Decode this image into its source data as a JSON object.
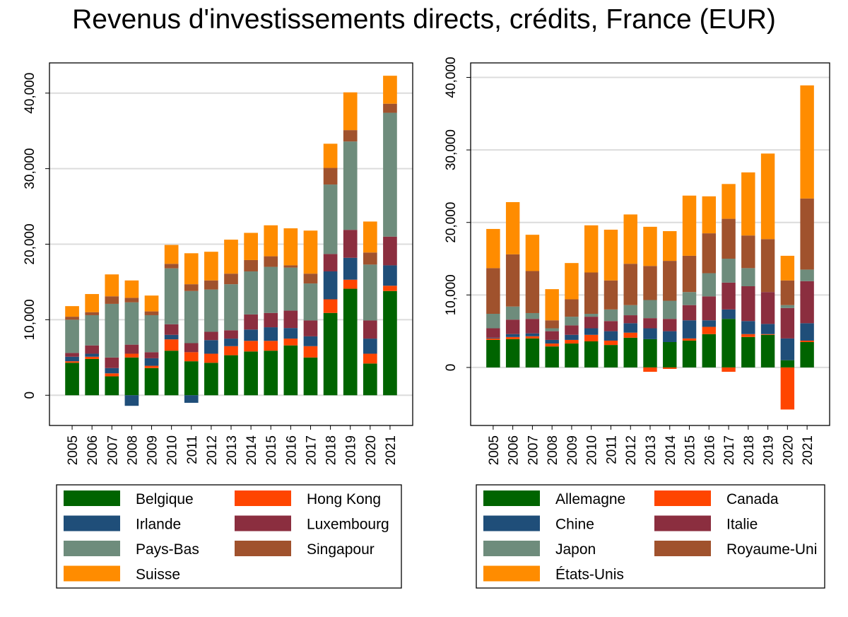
{
  "title": "Revenus d'investissements directs, crédits, France (EUR)",
  "chart_data": [
    {
      "type": "bar",
      "stacked": true,
      "categories": [
        "2005",
        "2006",
        "2007",
        "2008",
        "2009",
        "2010",
        "2011",
        "2012",
        "2013",
        "2014",
        "2015",
        "2016",
        "2017",
        "2018",
        "2019",
        "2020",
        "2021"
      ],
      "ylim": [
        -4000,
        44000
      ],
      "yticks": [
        0,
        10000,
        20000,
        30000,
        40000
      ],
      "ytick_labels": [
        "0",
        "10,000",
        "20,000",
        "30,000",
        "40,000"
      ],
      "grid": true,
      "legend_position": "bottom",
      "series": [
        {
          "name": "Belgique",
          "color": "#006400",
          "values": [
            4300,
            4800,
            2500,
            5000,
            3600,
            5900,
            4500,
            4300,
            5300,
            5800,
            5900,
            6600,
            5000,
            10900,
            14100,
            4200,
            13800
          ]
        },
        {
          "name": "Hong Kong",
          "color": "#ff4500",
          "values": [
            200,
            300,
            400,
            500,
            300,
            1500,
            1200,
            1200,
            1200,
            1400,
            1300,
            900,
            1500,
            1800,
            1200,
            1300,
            700
          ]
        },
        {
          "name": "Irlande",
          "color": "#1f4e79",
          "values": [
            600,
            400,
            700,
            -1400,
            1000,
            600,
            -1000,
            1800,
            1000,
            1500,
            1800,
            1400,
            1300,
            3700,
            2900,
            2000,
            2700
          ]
        },
        {
          "name": "Luxembourg",
          "color": "#8b2e3f",
          "values": [
            500,
            1100,
            1400,
            1200,
            800,
            1400,
            1200,
            1100,
            1100,
            2000,
            1900,
            2300,
            2100,
            2300,
            3700,
            2400,
            3800
          ]
        },
        {
          "name": "Pays-Bas",
          "color": "#6e8c7c",
          "values": [
            4400,
            4000,
            7100,
            5600,
            4900,
            7400,
            6900,
            5600,
            6100,
            5700,
            6100,
            5700,
            4900,
            9200,
            11700,
            7400,
            16400
          ]
        },
        {
          "name": "Singapour",
          "color": "#a0522d",
          "values": [
            400,
            400,
            1000,
            600,
            500,
            600,
            900,
            1200,
            1400,
            1500,
            1400,
            300,
            1300,
            2200,
            1500,
            1600,
            1200
          ]
        },
        {
          "name": "Suisse",
          "color": "#ff8c00",
          "values": [
            1400,
            2400,
            2900,
            2300,
            2100,
            2500,
            4100,
            3800,
            4500,
            3600,
            4100,
            4900,
            5700,
            3200,
            5000,
            4100,
            3700
          ]
        }
      ]
    },
    {
      "type": "bar",
      "stacked": true,
      "categories": [
        "2005",
        "2006",
        "2007",
        "2008",
        "2009",
        "2010",
        "2011",
        "2012",
        "2013",
        "2014",
        "2015",
        "2016",
        "2017",
        "2018",
        "2019",
        "2020",
        "2021"
      ],
      "ylim": [
        -8000,
        42000
      ],
      "yticks": [
        0,
        10000,
        20000,
        30000,
        40000
      ],
      "ytick_labels": [
        "0",
        "10,000",
        "20,000",
        "30,000",
        "40,000"
      ],
      "grid": true,
      "legend_position": "bottom",
      "series": [
        {
          "name": "Allemagne",
          "color": "#006400",
          "values": [
            3800,
            3900,
            4000,
            2900,
            3300,
            3600,
            3100,
            4100,
            3900,
            3500,
            3700,
            4600,
            6700,
            4200,
            4500,
            1000,
            3500
          ]
        },
        {
          "name": "Canada",
          "color": "#ff4500",
          "values": [
            200,
            300,
            300,
            400,
            500,
            900,
            600,
            700,
            -600,
            -200,
            300,
            1000,
            -600,
            400,
            100,
            -5800,
            200
          ]
        },
        {
          "name": "Chine",
          "color": "#1f4e79",
          "values": [
            100,
            400,
            400,
            500,
            700,
            900,
            1300,
            1300,
            1500,
            1500,
            2500,
            900,
            1300,
            1800,
            1400,
            3000,
            2400
          ]
        },
        {
          "name": "Italie",
          "color": "#8b2e3f",
          "values": [
            1300,
            2000,
            2000,
            1200,
            1300,
            1600,
            1400,
            1100,
            1400,
            1700,
            2100,
            3300,
            3700,
            4800,
            4400,
            4200,
            5800
          ]
        },
        {
          "name": "Japon",
          "color": "#6e8c7c",
          "values": [
            2000,
            1800,
            800,
            400,
            1200,
            400,
            1600,
            1400,
            2500,
            2500,
            1800,
            3200,
            3300,
            2500,
            0,
            400,
            1600
          ]
        },
        {
          "name": "Royaume-Uni",
          "color": "#a0522d",
          "values": [
            6300,
            7200,
            5800,
            1100,
            2400,
            5700,
            4000,
            5700,
            4700,
            5500,
            5000,
            5500,
            5500,
            4500,
            7300,
            3400,
            9800
          ]
        },
        {
          "name": "États-Unis",
          "color": "#ff8c00",
          "values": [
            5400,
            7200,
            5000,
            4300,
            5000,
            6500,
            7000,
            6800,
            5400,
            4100,
            8300,
            5100,
            4800,
            8700,
            11800,
            3400,
            15600
          ]
        }
      ]
    }
  ]
}
